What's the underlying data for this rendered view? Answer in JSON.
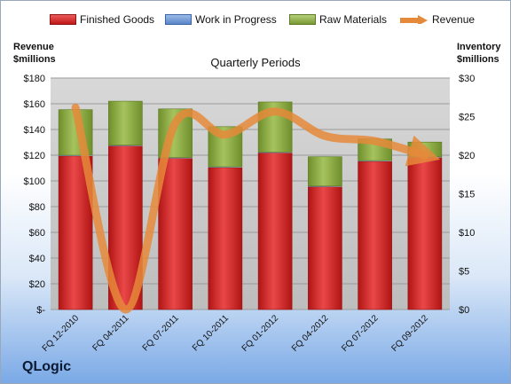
{
  "chart_data": {
    "type": "bar",
    "subtype": "stacked-bar-with-line",
    "title": "Quarterly Periods",
    "categories": [
      "FQ 12-2010",
      "FQ 04-2011",
      "FQ 07-2011",
      "FQ 10-2011",
      "FQ 01-2012",
      "FQ 04-2012",
      "FQ 07-2012",
      "FQ 09-2012"
    ],
    "series": [
      {
        "name": "Finished Goods",
        "axis": "right",
        "values": [
          19.9,
          21.2,
          19.6,
          18.4,
          20.3,
          15.9,
          19.2,
          19.7
        ]
      },
      {
        "name": "Work in Progress",
        "axis": "right",
        "values": [
          0.1,
          0.1,
          0.1,
          0.1,
          0.1,
          0.1,
          0.1,
          0.1
        ]
      },
      {
        "name": "Raw Materials",
        "axis": "right",
        "values": [
          5.9,
          5.7,
          6.3,
          5.2,
          6.5,
          3.8,
          2.8,
          1.9
        ]
      },
      {
        "name": "Revenue",
        "axis": "left",
        "type": "line",
        "values": [
          157,
          0,
          145,
          136,
          154,
          135,
          131,
          120
        ]
      }
    ],
    "ylabel_left": "Revenue\n$millions",
    "ylabel_right": "Inventory\n$millions",
    "ylim_left": [
      0,
      180
    ],
    "ylim_right": [
      0,
      30
    ],
    "yticks_left": [
      "$-",
      "$20",
      "$40",
      "$60",
      "$80",
      "$100",
      "$120",
      "$140",
      "$160",
      "$180"
    ],
    "yticks_right": [
      "$0",
      "$5",
      "$10",
      "$15",
      "$20",
      "$25",
      "$30"
    ],
    "grid": true,
    "legend_position": "top",
    "colors": {
      "finished_goods": "#d42a2a",
      "work_in_progress": "#6b93d0",
      "raw_materials": "#8fae48",
      "revenue": "#e58a3a",
      "plot_background": "#c8c8c8"
    }
  },
  "legend": {
    "finished_goods": "Finished Goods",
    "work_in_progress": "Work in Progress",
    "raw_materials": "Raw Materials",
    "revenue": "Revenue"
  },
  "axis_titles": {
    "left_line1": "Revenue",
    "left_line2": "$millions",
    "right_line1": "Inventory",
    "right_line2": "$millions"
  },
  "brand": "QLogic"
}
